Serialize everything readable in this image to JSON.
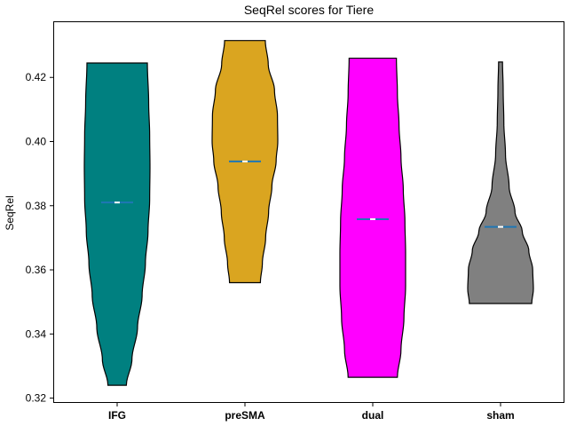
{
  "chart_data": {
    "type": "violin",
    "title": "SeqRel scores for Tiere",
    "xlabel": "",
    "ylabel": "SeqRel",
    "ylim": [
      0.3185,
      0.4375
    ],
    "yticks": [
      0.32,
      0.34,
      0.36,
      0.38,
      0.4,
      0.42
    ],
    "ytick_labels": [
      "0.32",
      "0.34",
      "0.36",
      "0.38",
      "0.40",
      "0.42"
    ],
    "grid": false,
    "legend": "none",
    "categories": [
      "IFG",
      "preSMA",
      "dual",
      "sham"
    ],
    "series": [
      {
        "category": "IFG",
        "color": "#008080",
        "min": 0.324,
        "max": 0.4245,
        "median": 0.381,
        "profile": [
          [
            0.324,
            0.28
          ],
          [
            0.332,
            0.45
          ],
          [
            0.342,
            0.62
          ],
          [
            0.352,
            0.76
          ],
          [
            0.362,
            0.86
          ],
          [
            0.372,
            0.94
          ],
          [
            0.382,
            0.99
          ],
          [
            0.392,
            1.0
          ],
          [
            0.402,
            0.99
          ],
          [
            0.412,
            0.96
          ],
          [
            0.4245,
            0.92
          ]
        ]
      },
      {
        "category": "preSMA",
        "color": "#DAA520",
        "min": 0.356,
        "max": 0.4315,
        "median": 0.3938,
        "profile": [
          [
            0.356,
            0.47
          ],
          [
            0.362,
            0.53
          ],
          [
            0.37,
            0.63
          ],
          [
            0.378,
            0.72
          ],
          [
            0.386,
            0.82
          ],
          [
            0.394,
            0.95
          ],
          [
            0.4,
            1.0
          ],
          [
            0.408,
            0.99
          ],
          [
            0.416,
            0.9
          ],
          [
            0.424,
            0.71
          ],
          [
            0.4315,
            0.62
          ]
        ]
      },
      {
        "category": "dual",
        "color": "#FF00FF",
        "min": 0.3265,
        "max": 0.426,
        "median": 0.3758,
        "profile": [
          [
            0.3265,
            0.75
          ],
          [
            0.335,
            0.86
          ],
          [
            0.345,
            0.95
          ],
          [
            0.355,
            1.0
          ],
          [
            0.365,
            1.0
          ],
          [
            0.375,
            0.98
          ],
          [
            0.385,
            0.93
          ],
          [
            0.395,
            0.86
          ],
          [
            0.405,
            0.8
          ],
          [
            0.415,
            0.75
          ],
          [
            0.426,
            0.72
          ]
        ]
      },
      {
        "category": "sham",
        "color": "#808080",
        "min": 0.3495,
        "max": 0.4248,
        "median": 0.3734,
        "profile": [
          [
            0.3495,
            0.95
          ],
          [
            0.354,
            1.0
          ],
          [
            0.36,
            0.98
          ],
          [
            0.366,
            0.86
          ],
          [
            0.372,
            0.66
          ],
          [
            0.378,
            0.44
          ],
          [
            0.386,
            0.26
          ],
          [
            0.396,
            0.15
          ],
          [
            0.406,
            0.1
          ],
          [
            0.416,
            0.08
          ],
          [
            0.4248,
            0.06
          ]
        ]
      }
    ]
  }
}
